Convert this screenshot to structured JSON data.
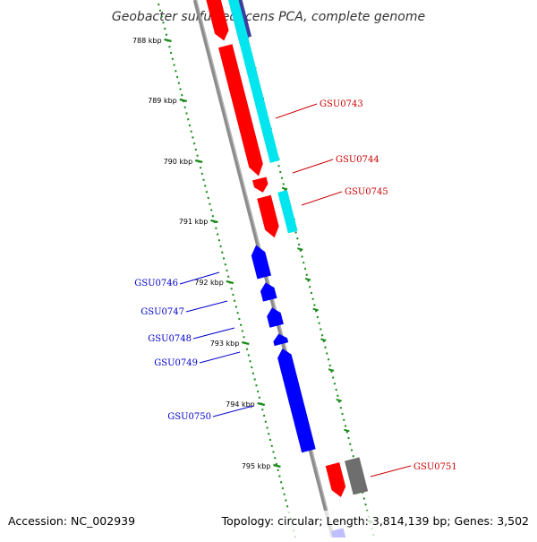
{
  "title": "Geobacter sulfurreducens PCA, complete genome",
  "accession": "Accession: NC_002939",
  "genome_info": "Topology: circular; Length: 3,814,139 bp; Genes: 3,502",
  "scale_labels": [
    "788 kbp",
    "789 kbp",
    "790 kbp",
    "791 kbp",
    "792 kbp",
    "793 kbp",
    "794 kbp",
    "795 kbp"
  ],
  "colors": {
    "backbone": "#8c8c8c",
    "tick": "#1a8a1a",
    "forward_cds": "#ff0000",
    "reverse_cds": "#0000ff",
    "cyan_feature": "#00e5ee",
    "dark_blue_feature": "#3d3d9e",
    "gray_feature": "#6e6e6e",
    "forward_label": "#cc0000",
    "reverse_label": "#0000cc"
  },
  "gene_labels": {
    "forward": [
      "GSU0743",
      "GSU0744",
      "GSU0745",
      "GSU0751"
    ],
    "reverse": [
      "GSU0746",
      "GSU0747",
      "GSU0748",
      "GSU0749",
      "GSU0750"
    ]
  }
}
